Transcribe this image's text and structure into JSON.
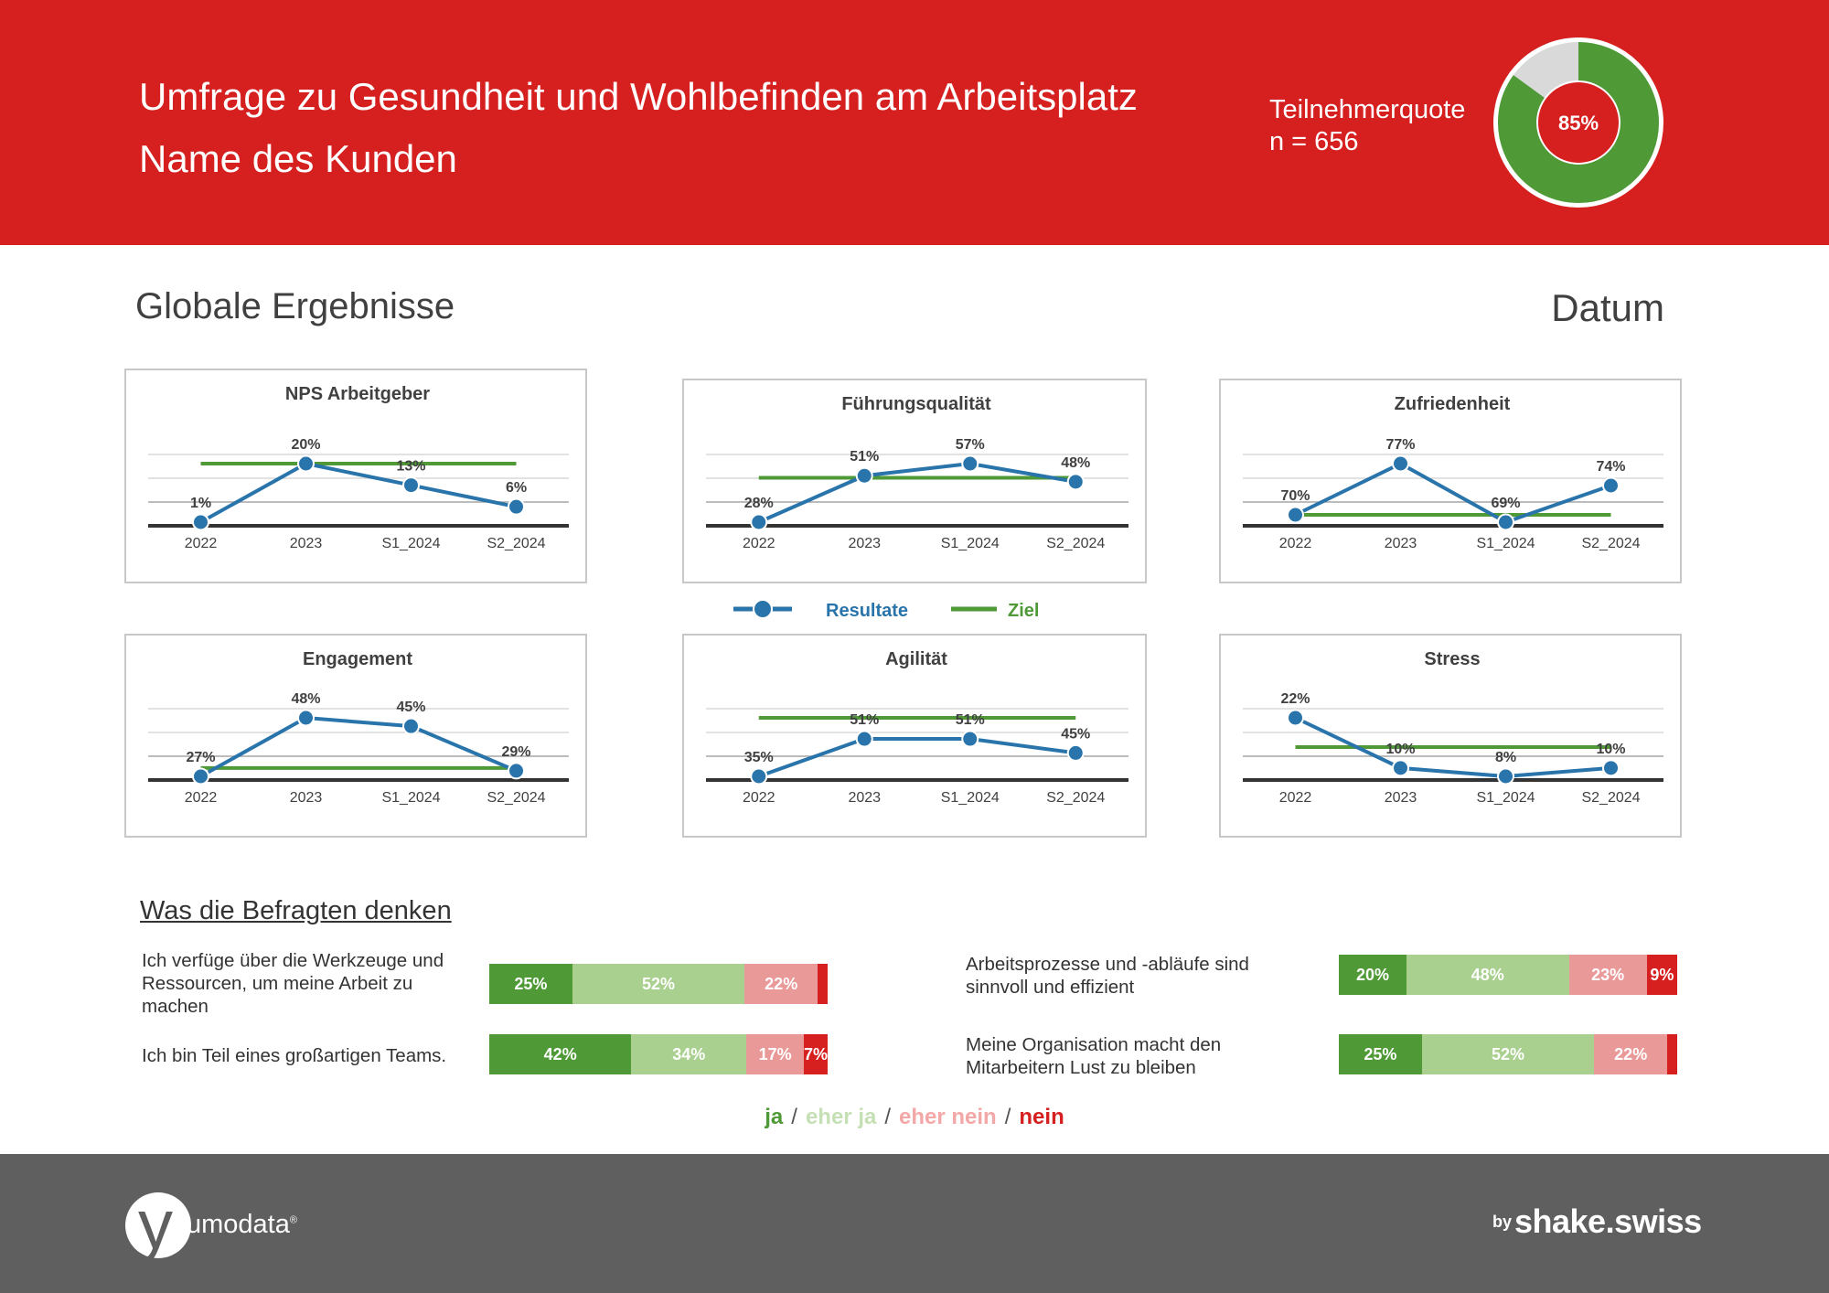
{
  "header": {
    "title": "Umfrage zu Gesundheit und Wohlbefinden am Arbeitsplatz",
    "subtitle": "Name des Kunden",
    "participation_label": "Teilnehmerquote",
    "participation_n": "n = 656",
    "participation_pct_label": "85%",
    "participation_value": 85,
    "colors": {
      "header_bg": "#d61f1f",
      "donut_fill": "#4f9a37",
      "donut_rest": "#d9d9d9"
    }
  },
  "section": {
    "title": "Globale Ergebnisse",
    "date": "Datum"
  },
  "legend": {
    "results": "Resultate",
    "target": "Ziel",
    "results_color": "#2874ab",
    "target_color": "#4f9a37"
  },
  "chart_data": [
    {
      "type": "line",
      "title": "NPS Arbeitgeber",
      "categories": [
        "2022",
        "2023",
        "S1_2024",
        "S2_2024"
      ],
      "series": [
        {
          "name": "Resultate",
          "values": [
            1,
            20,
            13,
            6
          ],
          "labels": [
            "1%",
            "20%",
            "13%",
            "6%"
          ]
        },
        {
          "name": "Ziel",
          "values": [
            20,
            20,
            20,
            20
          ]
        }
      ]
    },
    {
      "type": "line",
      "title": "Führungsqualität",
      "categories": [
        "2022",
        "2023",
        "S1_2024",
        "S2_2024"
      ],
      "series": [
        {
          "name": "Resultate",
          "values": [
            28,
            51,
            57,
            48
          ],
          "labels": [
            "28%",
            "51%",
            "57%",
            "48%"
          ]
        },
        {
          "name": "Ziel",
          "values": [
            50,
            50,
            50,
            50
          ]
        }
      ]
    },
    {
      "type": "line",
      "title": "Zufriedenheit",
      "categories": [
        "2022",
        "2023",
        "S1_2024",
        "S2_2024"
      ],
      "series": [
        {
          "name": "Resultate",
          "values": [
            70,
            77,
            69,
            74
          ],
          "labels": [
            "70%",
            "77%",
            "69%",
            "74%"
          ]
        },
        {
          "name": "Ziel",
          "values": [
            70,
            70,
            70,
            70
          ]
        }
      ]
    },
    {
      "type": "line",
      "title": "Engagement",
      "categories": [
        "2022",
        "2023",
        "S1_2024",
        "S2_2024"
      ],
      "series": [
        {
          "name": "Resultate",
          "values": [
            27,
            48,
            45,
            29
          ],
          "labels": [
            "27%",
            "48%",
            "45%",
            "29%"
          ]
        },
        {
          "name": "Ziel",
          "values": [
            30,
            30,
            30,
            30
          ]
        }
      ]
    },
    {
      "type": "line",
      "title": "Agilität",
      "categories": [
        "2022",
        "2023",
        "S1_2024",
        "S2_2024"
      ],
      "series": [
        {
          "name": "Resultate",
          "values": [
            35,
            51,
            51,
            45
          ],
          "labels": [
            "35%",
            "51%",
            "51%",
            "45%"
          ]
        },
        {
          "name": "Ziel",
          "values": [
            60,
            60,
            60,
            60
          ]
        }
      ]
    },
    {
      "type": "line",
      "title": "Stress",
      "categories": [
        "2022",
        "2023",
        "S1_2024",
        "S2_2024"
      ],
      "series": [
        {
          "name": "Resultate",
          "values": [
            22,
            10,
            8,
            10
          ],
          "labels": [
            "22%",
            "10%",
            "8%",
            "10%"
          ]
        },
        {
          "name": "Ziel",
          "values": [
            15,
            15,
            15,
            15
          ]
        }
      ]
    }
  ],
  "opinions": {
    "title": "Was die Befragten denken",
    "items": [
      {
        "text": "Ich verfüge über die Werkzeuge und Ressourcen, um meine Arbeit zu machen",
        "values": [
          25,
          52,
          22,
          3
        ],
        "labels": [
          "25%",
          "52%",
          "22%",
          ""
        ]
      },
      {
        "text": "Ich bin Teil eines großartigen Teams.",
        "values": [
          42,
          34,
          17,
          7
        ],
        "labels": [
          "42%",
          "34%",
          "17%",
          "7%"
        ]
      },
      {
        "text": "Arbeitsprozesse und -abläufe sind sinnvoll und effizient",
        "values": [
          20,
          48,
          23,
          9
        ],
        "labels": [
          "20%",
          "48%",
          "23%",
          "9%"
        ]
      },
      {
        "text": "Meine Organisation macht den Mitarbeitern Lust zu bleiben",
        "values": [
          25,
          52,
          22,
          3
        ],
        "labels": [
          "25%",
          "52%",
          "22%",
          ""
        ]
      }
    ],
    "scale": {
      "ja": "ja",
      "eher_ja": "eher ja",
      "eher_nein": "eher nein",
      "nein": "nein",
      "sep": "/",
      "colors": [
        "#4f9a37",
        "#a9d08e",
        "#ea9999",
        "#d61f1f"
      ],
      "text_colors": [
        "#ffffff",
        "#ffffff",
        "#ffffff",
        "#ffffff"
      ]
    }
  },
  "footer": {
    "logo_y": "y",
    "logo_text": "umodata",
    "logo_reg": "®",
    "by": "by",
    "brand": "shake.swiss"
  }
}
